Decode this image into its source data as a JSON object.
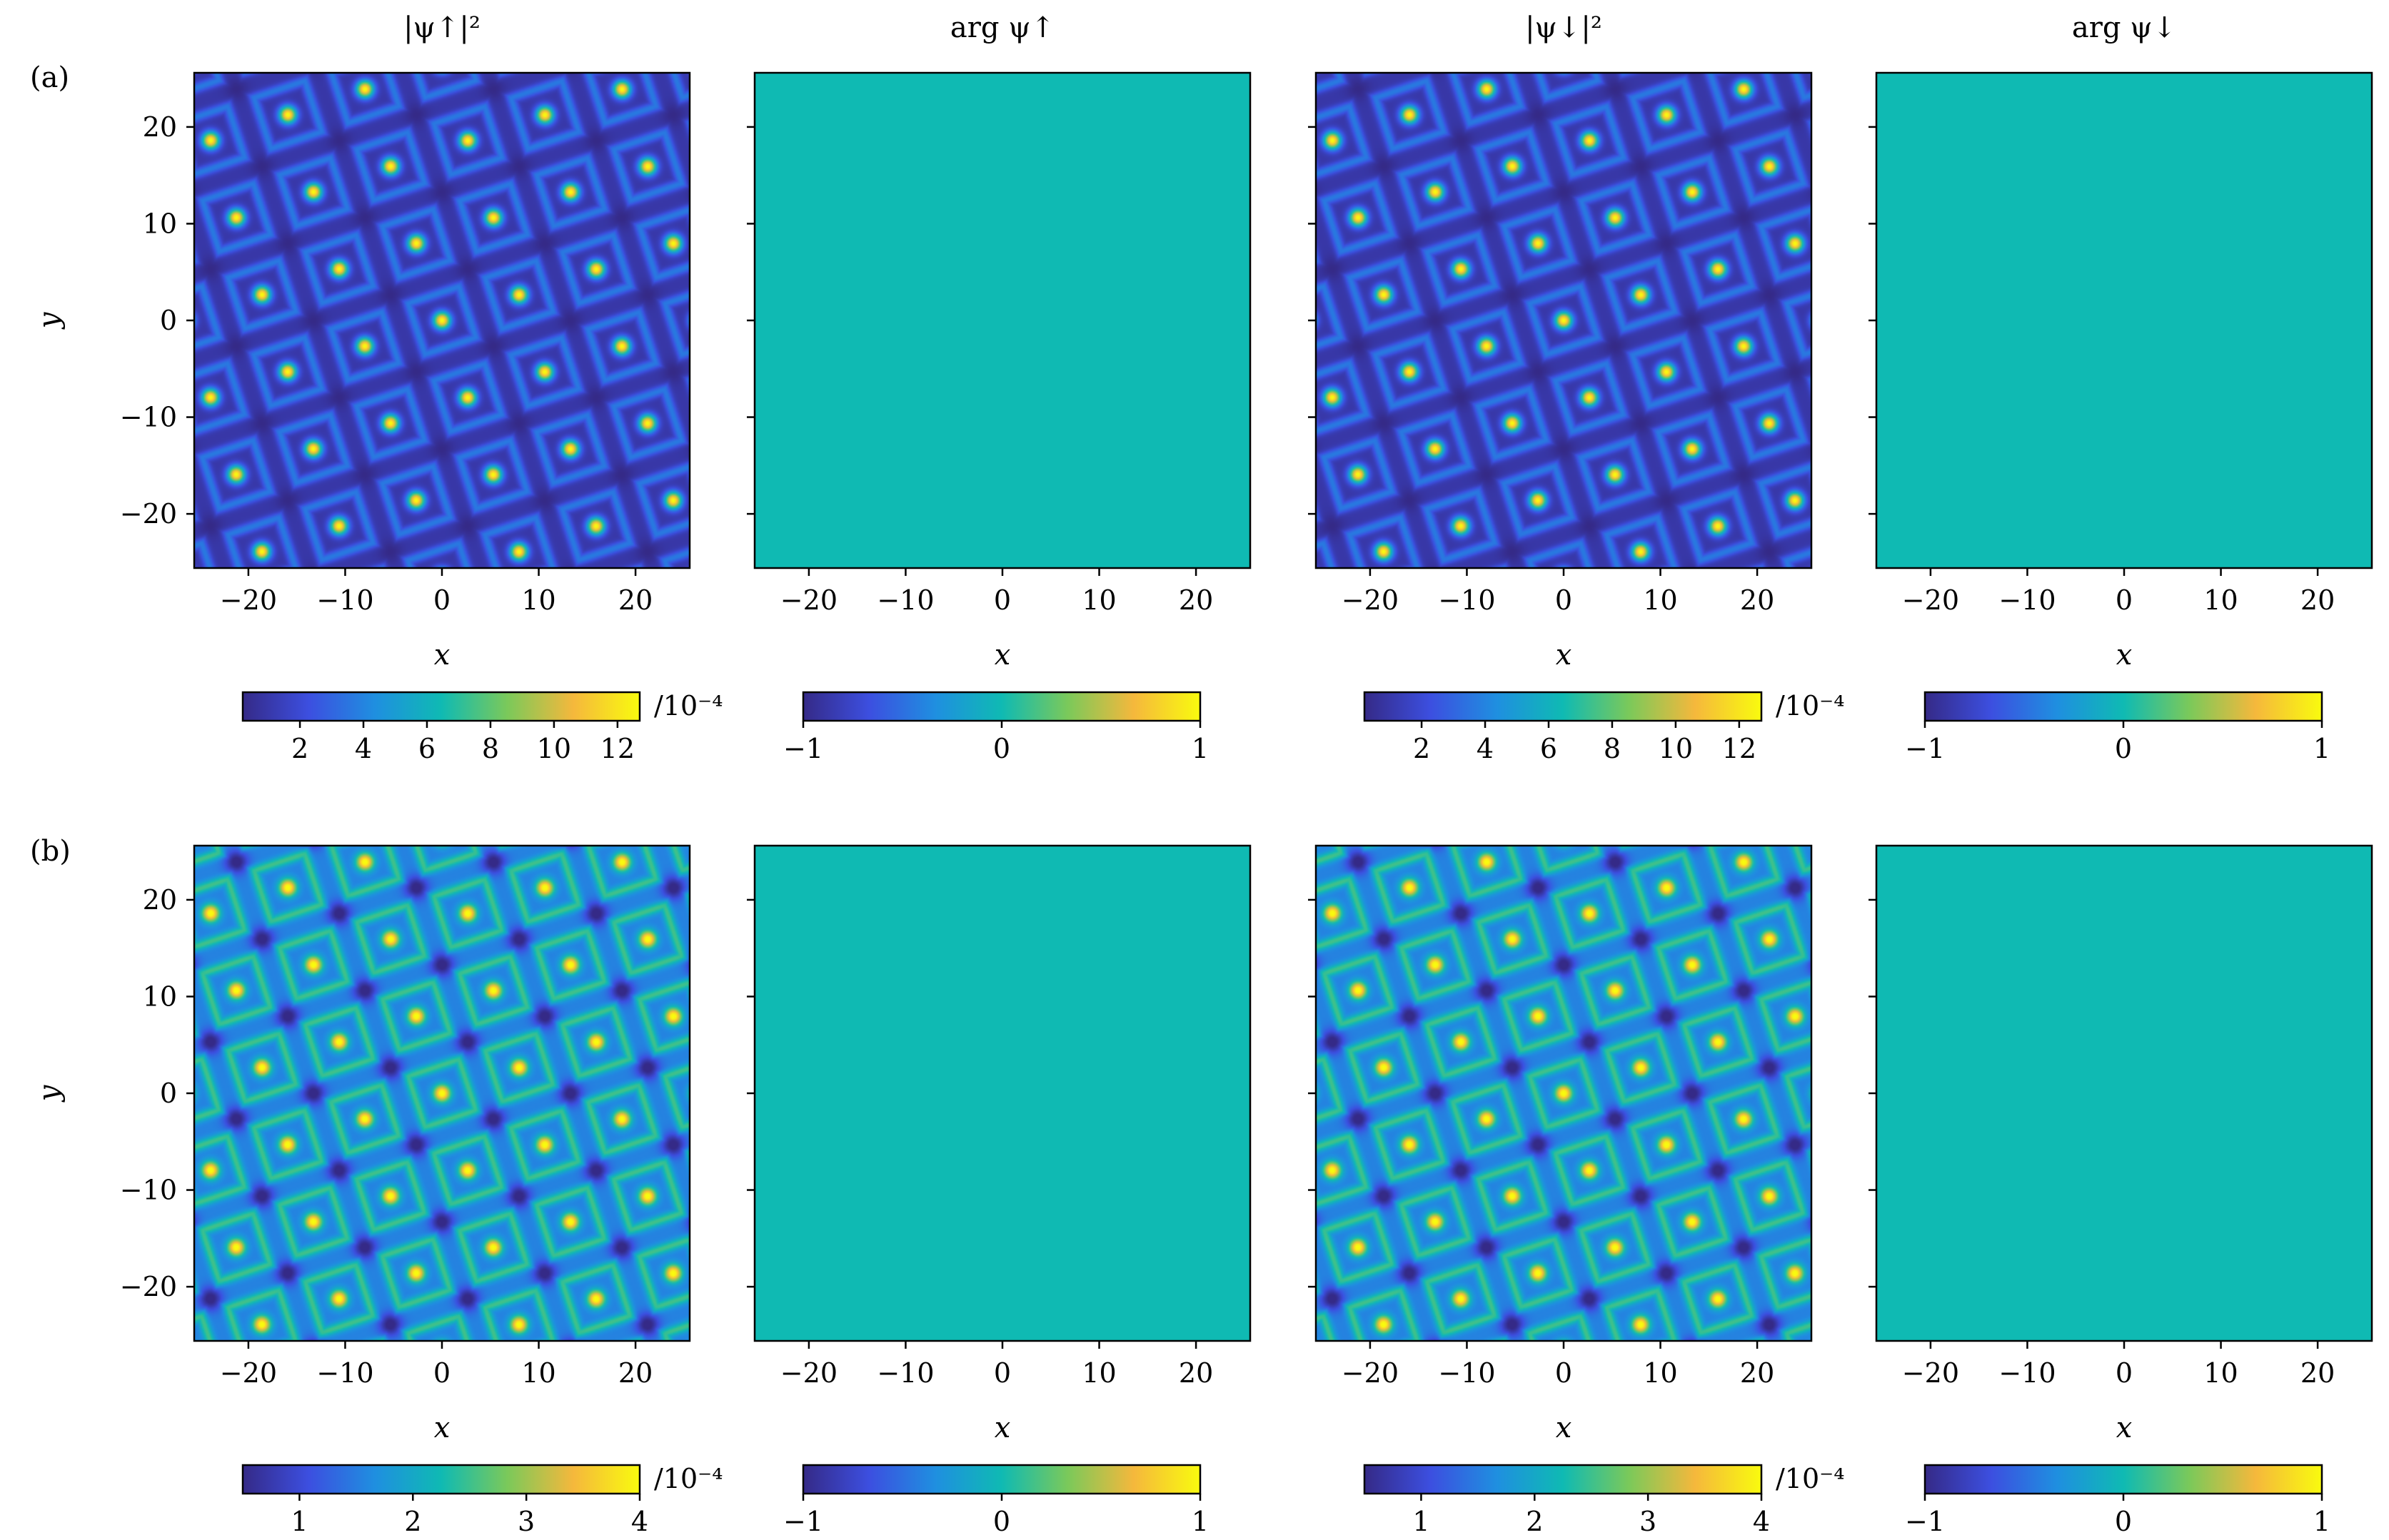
{
  "chart_data": {
    "type": "heatmap",
    "colormap": "parula-like",
    "colors": [
      "#352a87",
      "#3c4fe0",
      "#1f8fe0",
      "#0fbab3",
      "#7bc95a",
      "#f5b83c",
      "#f9fb0e"
    ],
    "rows": [
      {
        "label": "(a)",
        "panels": [
          {
            "title": "|ψ↑|²",
            "kind": "density",
            "lattice_contrast": "weak",
            "colorbar": {
              "ticks": [
                "2",
                "4",
                "6",
                "8",
                "10",
                "12"
              ],
              "tick_values": [
                2,
                4,
                6,
                8,
                10,
                12
              ],
              "range": [
                0.2,
                12.7
              ],
              "unit": "/10⁻⁴"
            }
          },
          {
            "title": "arg ψ↑",
            "kind": "phase",
            "uniform_value": 0,
            "colorbar": {
              "ticks": [
                "−1",
                "0",
                "1"
              ],
              "tick_values": [
                -1,
                0,
                1
              ],
              "range": [
                -1,
                1
              ],
              "unit": ""
            }
          },
          {
            "title": "|ψ↓|²",
            "kind": "density",
            "lattice_contrast": "weak",
            "colorbar": {
              "ticks": [
                "2",
                "4",
                "6",
                "8",
                "10",
                "12"
              ],
              "tick_values": [
                2,
                4,
                6,
                8,
                10,
                12
              ],
              "range": [
                0.2,
                12.7
              ],
              "unit": "/10⁻⁴"
            }
          },
          {
            "title": "arg ψ↓",
            "kind": "phase",
            "uniform_value": 0,
            "colorbar": {
              "ticks": [
                "−1",
                "0",
                "1"
              ],
              "tick_values": [
                -1,
                0,
                1
              ],
              "range": [
                -1,
                1
              ],
              "unit": ""
            }
          }
        ]
      },
      {
        "label": "(b)",
        "panels": [
          {
            "title": "",
            "kind": "density",
            "lattice_contrast": "strong",
            "colorbar": {
              "ticks": [
                "1",
                "2",
                "3",
                "4"
              ],
              "tick_values": [
                1,
                2,
                3,
                4
              ],
              "range": [
                0.5,
                4.0
              ],
              "unit": "/10⁻⁴"
            }
          },
          {
            "title": "",
            "kind": "phase",
            "uniform_value": 0,
            "colorbar": {
              "ticks": [
                "−1",
                "0",
                "1"
              ],
              "tick_values": [
                -1,
                0,
                1
              ],
              "range": [
                -1,
                1
              ],
              "unit": ""
            }
          },
          {
            "title": "",
            "kind": "density",
            "lattice_contrast": "strong",
            "colorbar": {
              "ticks": [
                "1",
                "2",
                "3",
                "4"
              ],
              "tick_values": [
                1,
                2,
                3,
                4
              ],
              "range": [
                0.5,
                4.0
              ],
              "unit": "/10⁻⁴"
            }
          },
          {
            "title": "",
            "kind": "phase",
            "uniform_value": 0,
            "colorbar": {
              "ticks": [
                "−1",
                "0",
                "1"
              ],
              "tick_values": [
                -1,
                0,
                1
              ],
              "range": [
                -1,
                1
              ],
              "unit": ""
            }
          }
        ]
      }
    ],
    "xlabel": "x",
    "ylabel": "y",
    "xlim": [
      -25.6,
      25.6
    ],
    "ylim": [
      25.6,
      -25.6
    ],
    "xticks": [
      -20,
      -10,
      0,
      10,
      20
    ],
    "xtick_labels": [
      "−20",
      "−10",
      "0",
      "10",
      "20"
    ],
    "yticks": [
      -20,
      -10,
      0,
      10,
      20
    ],
    "ytick_labels": [
      "−20",
      "−10",
      "0",
      "10",
      "20"
    ],
    "lattice": {
      "spacing": 8.4,
      "rotation_deg": 18.4
    }
  }
}
